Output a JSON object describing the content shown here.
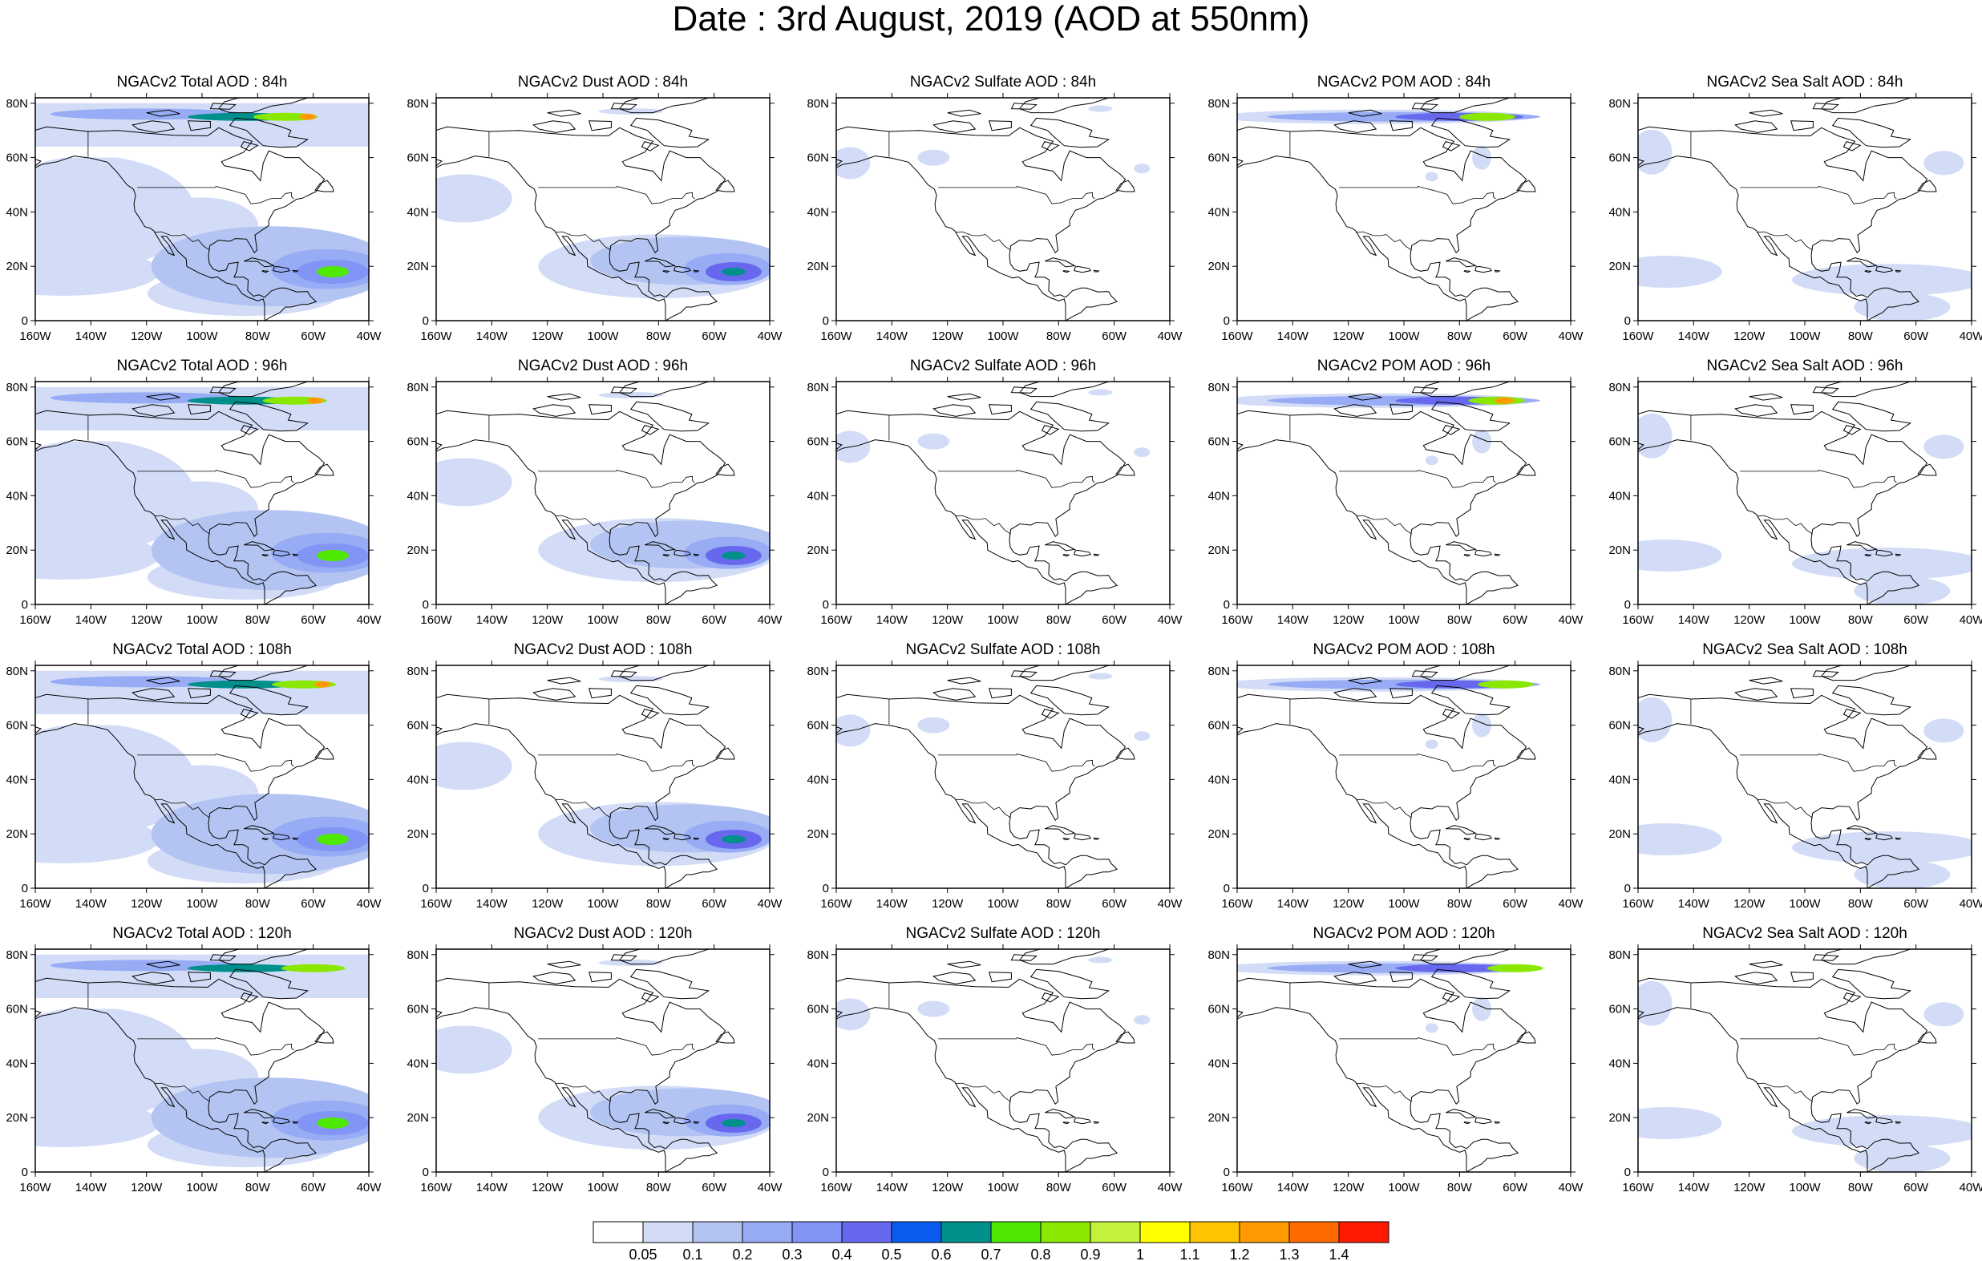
{
  "title": "Date : 3rd August, 2019 (AOD at 550nm)",
  "lon_ticks": [
    "160W",
    "140W",
    "120W",
    "100W",
    "80W",
    "60W",
    "40W"
  ],
  "lat_ticks": [
    "0",
    "20N",
    "40N",
    "60N",
    "80N"
  ],
  "panels": [
    {
      "title": "NGACv2 Total AOD : 84h",
      "species": "total",
      "hour": 84
    },
    {
      "title": "NGACv2 Dust AOD : 84h",
      "species": "dust",
      "hour": 84
    },
    {
      "title": "NGACv2 Sulfate AOD : 84h",
      "species": "sulfate",
      "hour": 84
    },
    {
      "title": "NGACv2 POM AOD : 84h",
      "species": "pom",
      "hour": 84
    },
    {
      "title": "NGACv2 Sea Salt AOD : 84h",
      "species": "seasalt",
      "hour": 84
    },
    {
      "title": "NGACv2 Total AOD : 96h",
      "species": "total",
      "hour": 96
    },
    {
      "title": "NGACv2 Dust AOD : 96h",
      "species": "dust",
      "hour": 96
    },
    {
      "title": "NGACv2 Sulfate AOD : 96h",
      "species": "sulfate",
      "hour": 96
    },
    {
      "title": "NGACv2 POM AOD : 96h",
      "species": "pom",
      "hour": 96
    },
    {
      "title": "NGACv2 Sea Salt AOD : 96h",
      "species": "seasalt",
      "hour": 96
    },
    {
      "title": "NGACv2 Total AOD : 108h",
      "species": "total",
      "hour": 108
    },
    {
      "title": "NGACv2 Dust AOD : 108h",
      "species": "dust",
      "hour": 108
    },
    {
      "title": "NGACv2 Sulfate AOD : 108h",
      "species": "sulfate",
      "hour": 108
    },
    {
      "title": "NGACv2 POM AOD : 108h",
      "species": "pom",
      "hour": 108
    },
    {
      "title": "NGACv2 Sea Salt AOD : 108h",
      "species": "seasalt",
      "hour": 108
    },
    {
      "title": "NGACv2 Total AOD : 120h",
      "species": "total",
      "hour": 120
    },
    {
      "title": "NGACv2 Dust AOD : 120h",
      "species": "dust",
      "hour": 120
    },
    {
      "title": "NGACv2 Sulfate AOD : 120h",
      "species": "sulfate",
      "hour": 120
    },
    {
      "title": "NGACv2 POM AOD : 120h",
      "species": "pom",
      "hour": 120
    },
    {
      "title": "NGACv2 Sea Salt  AOD : 120h",
      "species": "seasalt",
      "hour": 120
    }
  ],
  "colorbar": {
    "labels": [
      "0.05",
      "0.1",
      "0.2",
      "0.3",
      "0.4",
      "0.5",
      "0.6",
      "0.7",
      "0.8",
      "0.9",
      "1",
      "1.1",
      "1.2",
      "1.3",
      "1.4"
    ],
    "colors": [
      "#ffffff",
      "#d3dcf7",
      "#b4c4f2",
      "#97acf5",
      "#8294f5",
      "#6868ee",
      "#0a5cf0",
      "#00908c",
      "#4fe800",
      "#8ae800",
      "#c3f23c",
      "#ffff00",
      "#ffc400",
      "#ff9a00",
      "#ff6a00",
      "#ff1a00"
    ]
  }
}
